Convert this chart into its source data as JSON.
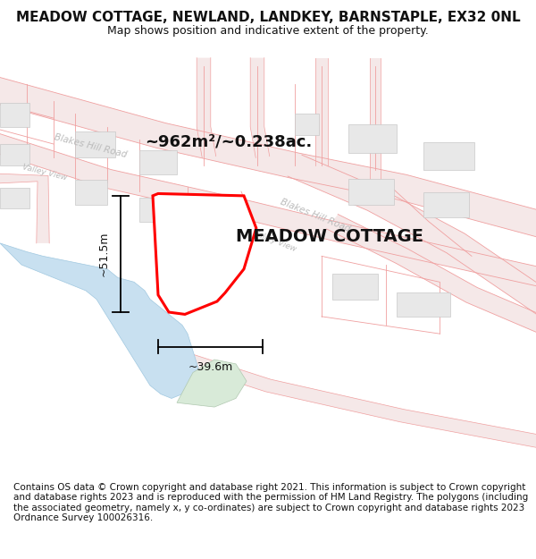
{
  "title": "MEADOW COTTAGE, NEWLAND, LANDKEY, BARNSTAPLE, EX32 0NL",
  "subtitle": "Map shows position and indicative extent of the property.",
  "property_label": "MEADOW COTTAGE",
  "area_label": "~962m²/~0.238ac.",
  "dim_vertical": "~51.5m",
  "dim_horizontal": "~39.6m",
  "footer": "Contains OS data © Crown copyright and database right 2021. This information is subject to Crown copyright and database rights 2023 and is reproduced with the permission of HM Land Registry. The polygons (including the associated geometry, namely x, y co-ordinates) are subject to Crown copyright and database rights 2023 Ordnance Survey 100026316.",
  "bg_color": "#ffffff",
  "road_line_color": "#f0a0a0",
  "road_fill_color": "#f5e8e8",
  "road_label_color": "#bbbbbb",
  "building_fill": "#e8e8e8",
  "building_stroke": "#c8c8c8",
  "property_outline_color": "#ff0000",
  "water_color": "#c8e0f0",
  "water_edge": "#a0c8e0",
  "green_color": "#d8ead8",
  "green_edge": "#b0c8b0",
  "title_fontsize": 11,
  "subtitle_fontsize": 9,
  "label_fontsize": 14,
  "area_fontsize": 13,
  "footer_fontsize": 7.5,
  "dim_fontsize": 9
}
